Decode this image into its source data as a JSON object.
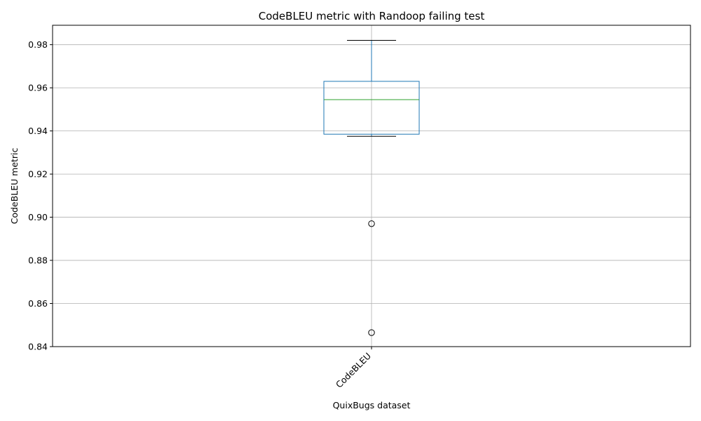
{
  "chart_data": {
    "type": "box",
    "title": "CodeBLEU metric with Randoop failing test",
    "xlabel": "QuixBugs dataset",
    "ylabel": "CodeBLEU metric",
    "categories": [
      "CodeBLEU"
    ],
    "boxes": [
      {
        "name": "CodeBLEU",
        "whisker_low": 0.9375,
        "q1": 0.9385,
        "median": 0.9545,
        "q3": 0.963,
        "whisker_high": 0.982,
        "outliers": [
          0.897,
          0.8465
        ]
      }
    ],
    "ylim": [
      0.84,
      0.989
    ],
    "yticks": [
      0.84,
      0.86,
      0.88,
      0.9,
      0.92,
      0.94,
      0.96,
      0.98
    ],
    "ytick_labels": [
      "0.84",
      "0.86",
      "0.88",
      "0.90",
      "0.92",
      "0.94",
      "0.96",
      "0.98"
    ],
    "grid": true,
    "colors": {
      "box": "#1f77b4",
      "median": "#2ca02c",
      "caps": "#000000",
      "grid": "#b0b0b0"
    }
  }
}
